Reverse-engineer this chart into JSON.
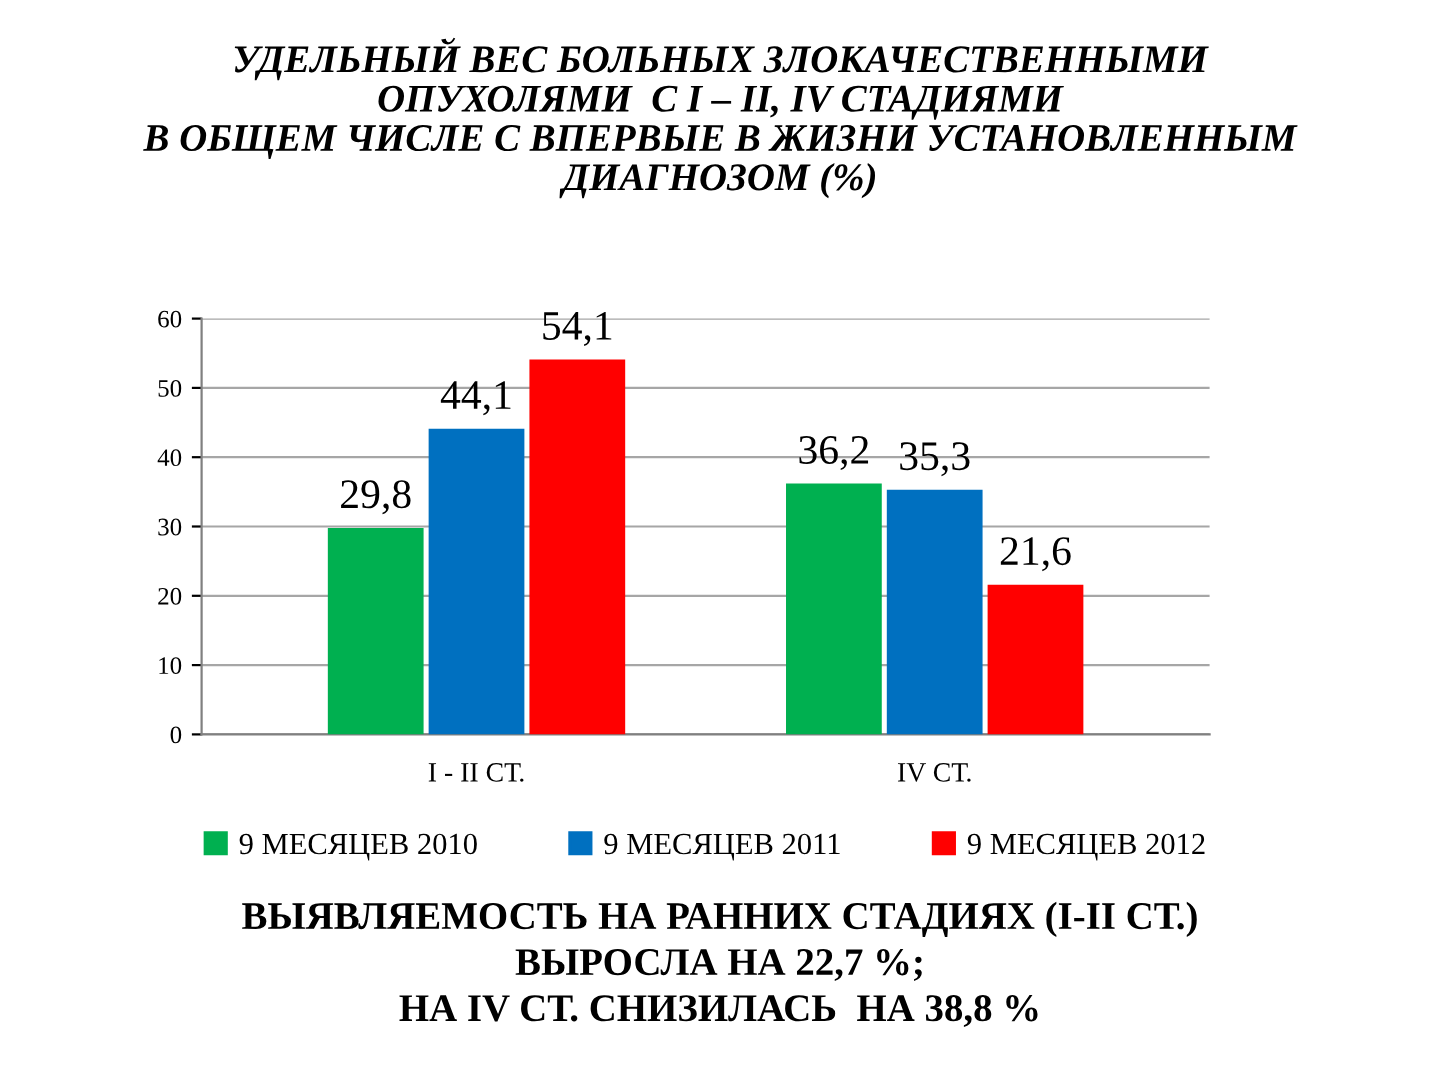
{
  "chart_data": {
    "type": "bar",
    "title": "УДЕЛЬНЫЙ ВЕС БОЛЬНЫХ ЗЛОКАЧЕСТВЕННЫМИ\nОПУХОЛЯМИ  С I – II, IV СТАДИЯМИ\nВ ОБЩЕМ ЧИСЛЕ С ВПЕРВЫЕ В ЖИЗНИ УСТАНОВЛЕННЫМ\nДИАГНОЗОМ (%)",
    "categories": [
      "I - II СТ.",
      "IV СТ."
    ],
    "series": [
      {
        "name": "9 МЕСЯЦЕВ 2010",
        "color": "#00b050",
        "values": [
          29.8,
          36.2
        ],
        "value_labels": [
          "29,8",
          "36,2"
        ]
      },
      {
        "name": "9 МЕСЯЦЕВ 2011",
        "color": "#0070c0",
        "values": [
          44.1,
          35.3
        ],
        "value_labels": [
          "44,1",
          "35,3"
        ]
      },
      {
        "name": "9 МЕСЯЦЕВ 2012",
        "color": "#ff0000",
        "values": [
          54.1,
          21.6
        ],
        "value_labels": [
          "54,1",
          "21,6"
        ]
      }
    ],
    "ylim": [
      0,
      60
    ],
    "yticks": [
      0,
      10,
      20,
      30,
      40,
      50,
      60
    ],
    "grid": "y",
    "legend": "bottom",
    "annotations": [
      "ВЫЯВЛЯЕМОСТЬ НА РАННИХ СТАДИЯХ (I-II СТ.)\nВЫРОСЛА НА 22,7 %;\nНА IV СТ. СНИЗИЛАСЬ  НА 38,8 %"
    ]
  }
}
